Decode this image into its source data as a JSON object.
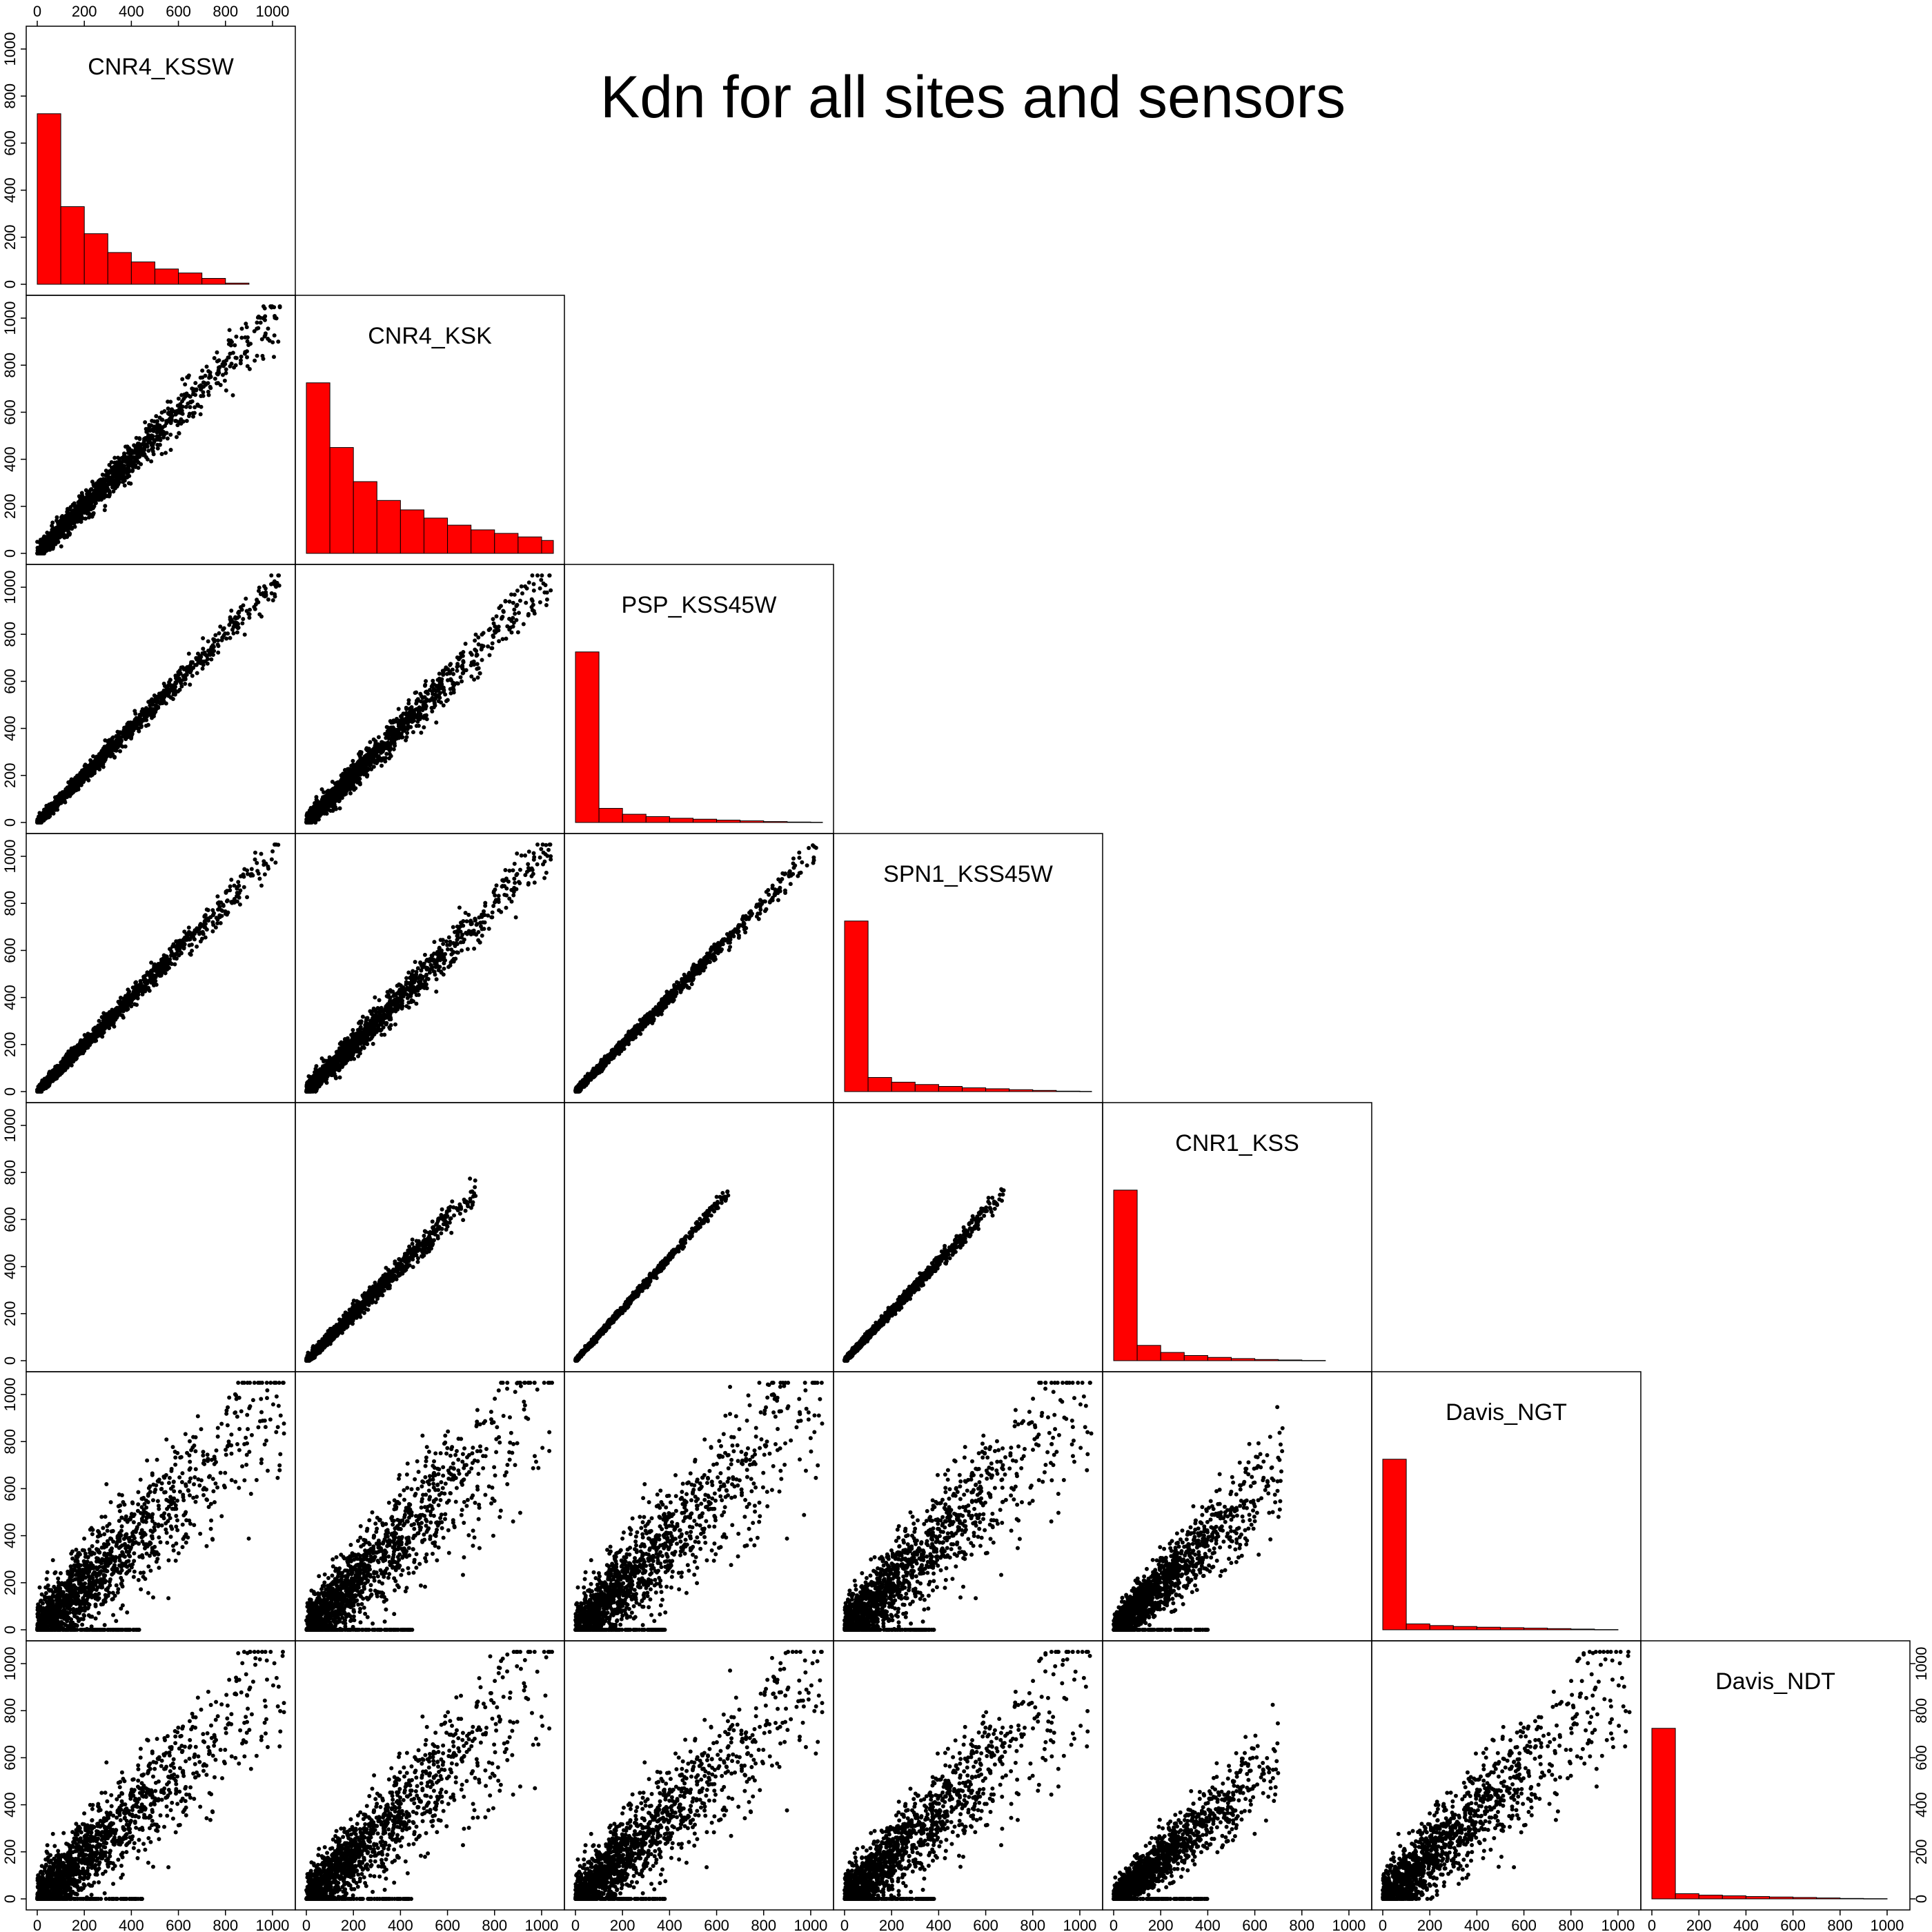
{
  "chart_data": {
    "type": "scatter-matrix",
    "title": "Kdn for all sites and sensors",
    "variables": [
      "CNR4_KSSW",
      "CNR4_KSK",
      "PSP_KSS45W",
      "SPN1_KSS45W",
      "CNR1_KSS",
      "Davis_NGT",
      "Davis_NDT"
    ],
    "axis_range": [
      0,
      1050
    ],
    "tick_values": [
      0,
      200,
      400,
      600,
      800,
      1000
    ],
    "tick_labels": [
      "0",
      "200",
      "400",
      "600",
      "800",
      "1000"
    ],
    "diagonal": "histogram",
    "lower_triangle": "scatter",
    "upper_triangle": "empty",
    "histogram_color": "#ff0000",
    "point_color": "#000000",
    "histogram_bin_width": 100,
    "histograms": {
      "CNR4_KSSW": [
        725,
        330,
        215,
        135,
        95,
        65,
        48,
        25,
        5,
        0,
        0
      ],
      "CNR4_KSK": [
        725,
        450,
        305,
        225,
        185,
        150,
        120,
        100,
        85,
        70,
        55
      ],
      "PSP_KSS45W": [
        725,
        60,
        35,
        25,
        18,
        14,
        10,
        7,
        4,
        2,
        1
      ],
      "SPN1_KSS45W": [
        725,
        60,
        40,
        30,
        22,
        16,
        12,
        8,
        5,
        2,
        1
      ],
      "CNR1_KSS": [
        725,
        65,
        35,
        22,
        14,
        9,
        5,
        3,
        1,
        0,
        0
      ],
      "Davis_NGT": [
        725,
        25,
        18,
        14,
        11,
        9,
        7,
        5,
        3,
        1,
        0
      ],
      "Davis_NDT": [
        725,
        22,
        16,
        13,
        10,
        8,
        6,
        4,
        2,
        1,
        0
      ]
    },
    "scatter_relations": [
      {
        "x": "CNR4_KSSW",
        "y": "CNR4_KSK",
        "x_max": 1040,
        "slope": 1.0,
        "spread": 45,
        "zero_line_max": 0
      },
      {
        "x": "CNR4_KSSW",
        "y": "PSP_KSS45W",
        "x_max": 1030,
        "slope": 1.0,
        "spread": 25,
        "zero_line_max": 0
      },
      {
        "x": "CNR4_KSK",
        "y": "PSP_KSS45W",
        "x_max": 1040,
        "slope": 1.0,
        "spread": 45,
        "zero_line_max": 0
      },
      {
        "x": "CNR4_KSSW",
        "y": "SPN1_KSS45W",
        "x_max": 1030,
        "slope": 1.0,
        "spread": 25,
        "zero_line_max": 0
      },
      {
        "x": "CNR4_KSK",
        "y": "SPN1_KSS45W",
        "x_max": 1040,
        "slope": 1.0,
        "spread": 45,
        "zero_line_max": 0
      },
      {
        "x": "PSP_KSS45W",
        "y": "SPN1_KSS45W",
        "x_max": 1030,
        "slope": 1.0,
        "spread": 18,
        "zero_line_max": 0
      },
      {
        "x": "CNR4_KSK",
        "y": "CNR1_KSS",
        "x_max": 720,
        "slope": 1.0,
        "spread": 22,
        "zero_line_max": 0
      },
      {
        "x": "PSP_KSS45W",
        "y": "CNR1_KSS",
        "x_max": 650,
        "slope": 1.1,
        "spread": 10,
        "zero_line_max": 0
      },
      {
        "x": "SPN1_KSS45W",
        "y": "CNR1_KSS",
        "x_max": 680,
        "slope": 1.05,
        "spread": 14,
        "zero_line_max": 0
      },
      {
        "x": "CNR4_KSSW",
        "y": "Davis_NGT",
        "x_max": 1050,
        "slope": 0.95,
        "spread": 140,
        "zero_line_max": 450
      },
      {
        "x": "CNR4_KSK",
        "y": "Davis_NGT",
        "x_max": 1050,
        "slope": 0.95,
        "spread": 140,
        "zero_line_max": 450
      },
      {
        "x": "PSP_KSS45W",
        "y": "Davis_NGT",
        "x_max": 1050,
        "slope": 0.95,
        "spread": 140,
        "zero_line_max": 380
      },
      {
        "x": "SPN1_KSS45W",
        "y": "Davis_NGT",
        "x_max": 1050,
        "slope": 0.95,
        "spread": 140,
        "zero_line_max": 380
      },
      {
        "x": "CNR1_KSS",
        "y": "Davis_NGT",
        "x_max": 720,
        "slope": 0.95,
        "spread": 80,
        "zero_line_max": 400
      },
      {
        "x": "CNR4_KSSW",
        "y": "Davis_NDT",
        "x_max": 1050,
        "slope": 0.9,
        "spread": 130,
        "zero_line_max": 450
      },
      {
        "x": "CNR4_KSK",
        "y": "Davis_NDT",
        "x_max": 1050,
        "slope": 0.9,
        "spread": 130,
        "zero_line_max": 450
      },
      {
        "x": "PSP_KSS45W",
        "y": "Davis_NDT",
        "x_max": 1050,
        "slope": 0.9,
        "spread": 130,
        "zero_line_max": 380
      },
      {
        "x": "SPN1_KSS45W",
        "y": "Davis_NDT",
        "x_max": 1050,
        "slope": 0.9,
        "spread": 130,
        "zero_line_max": 380
      },
      {
        "x": "CNR1_KSS",
        "y": "Davis_NDT",
        "x_max": 700,
        "slope": 0.85,
        "spread": 70,
        "zero_line_max": 400
      },
      {
        "x": "Davis_NGT",
        "y": "Davis_NDT",
        "x_max": 1050,
        "slope": 0.9,
        "spread": 130,
        "zero_line_max": 0
      }
    ]
  }
}
